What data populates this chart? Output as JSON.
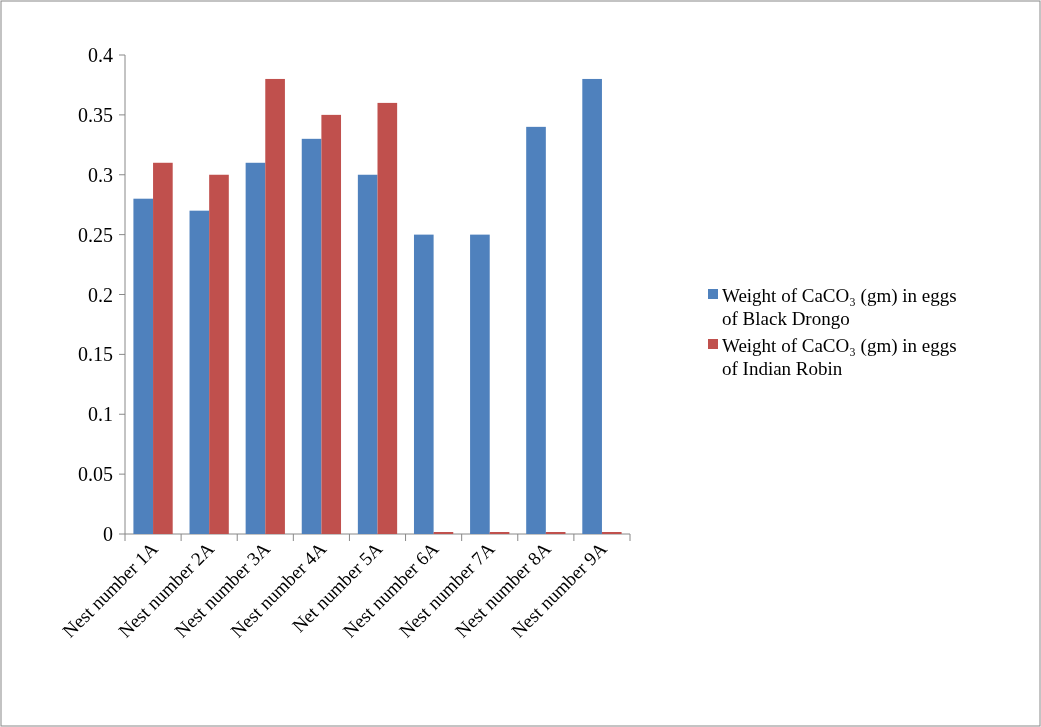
{
  "chart_data": {
    "type": "bar",
    "categories": [
      "Nest number 1A",
      "Nest number 2A",
      "Nest number 3A",
      "Nest number 4A",
      "Net number 5A",
      "Nest number 6A",
      "Nest number 7A",
      "Nest number 8A",
      "Nest number 9A"
    ],
    "series": [
      {
        "name": "Weight of CaCO₃ (gm) in eggs of Black Drongo",
        "color": "#4f81bd",
        "values": [
          0.28,
          0.27,
          0.31,
          0.33,
          0.3,
          0.25,
          0.25,
          0.34,
          0.38
        ]
      },
      {
        "name": "Weight of CaCO₃ (gm) in eggs of Indian Robin",
        "color": "#c0504d",
        "values": [
          0.31,
          0.3,
          0.38,
          0.35,
          0.36,
          0,
          0,
          0,
          0
        ]
      }
    ],
    "ylim": [
      0,
      0.4
    ],
    "yticks": [
      0,
      0.05,
      0.1,
      0.15,
      0.2,
      0.25,
      0.3,
      0.35,
      0.4
    ],
    "grid": false,
    "legend": "right"
  }
}
